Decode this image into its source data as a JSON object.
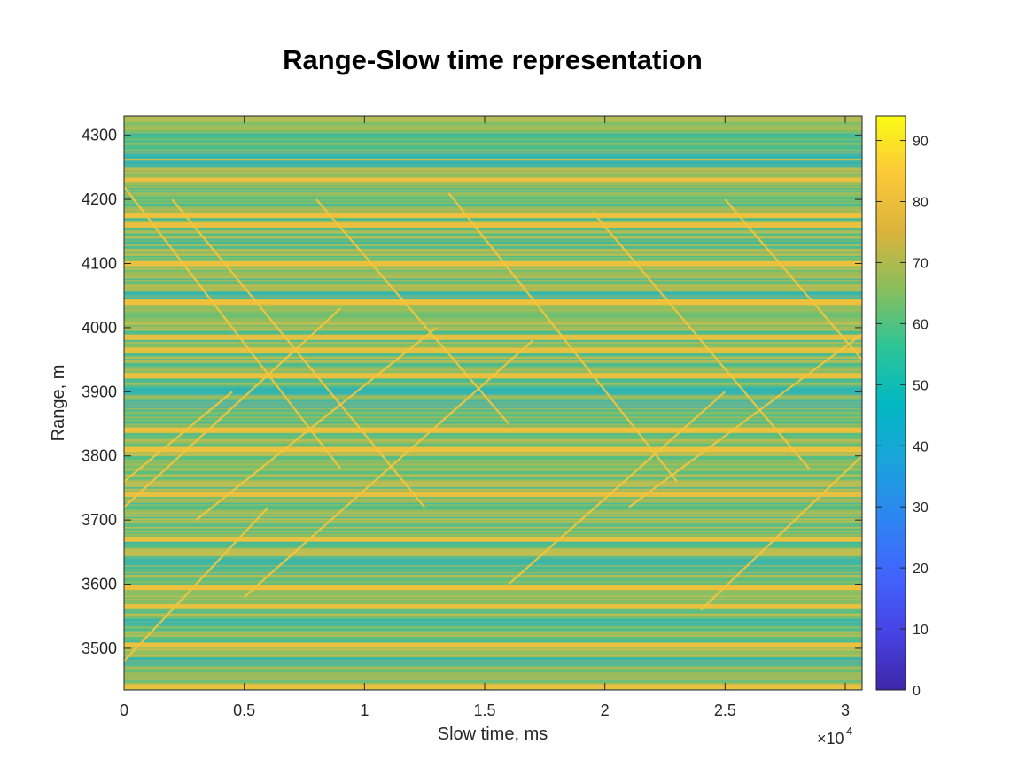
{
  "chart_data": {
    "type": "heatmap",
    "title": "Range-Slow time representation",
    "xlabel": "Slow time, ms",
    "ylabel": "Range, m",
    "xlim": [
      0,
      30700
    ],
    "ylim": [
      3435,
      4330
    ],
    "x_ticks": [
      0,
      5000,
      10000,
      15000,
      20000,
      25000,
      30000
    ],
    "x_tick_labels": [
      "0",
      "0.5",
      "1",
      "1.5",
      "2",
      "2.5",
      "3"
    ],
    "x_multiplier": {
      "base": "×10",
      "exponent": "4"
    },
    "y_ticks": [
      3500,
      3600,
      3700,
      3800,
      3900,
      4000,
      4100,
      4200,
      4300
    ],
    "y_tick_labels": [
      "3500",
      "3600",
      "3700",
      "3800",
      "3900",
      "4000",
      "4100",
      "4200",
      "4300"
    ],
    "colorbar": {
      "colormap": "parula",
      "clim": [
        0,
        94
      ],
      "ticks": [
        0,
        10,
        20,
        30,
        40,
        50,
        60,
        70,
        80,
        90
      ],
      "tick_labels": [
        "0",
        "10",
        "20",
        "30",
        "40",
        "50",
        "60",
        "70",
        "80",
        "90"
      ]
    },
    "bright_range_bands_m": [
      3440,
      3505,
      3565,
      3595,
      3670,
      3740,
      3810,
      3840,
      3925,
      3965,
      3985,
      4040,
      4100,
      4160,
      4175,
      4230
    ],
    "dim_range_bands_m": [
      3480,
      3540,
      3635,
      3880,
      3900,
      4050,
      4255,
      4270
    ],
    "diagonal_tracks": [
      {
        "x_start": 0,
        "y_start": 4220,
        "x_end": 9000,
        "y_end": 3780
      },
      {
        "x_start": 2000,
        "y_start": 4200,
        "x_end": 12500,
        "y_end": 3720
      },
      {
        "x_start": 8000,
        "y_start": 4200,
        "x_end": 16000,
        "y_end": 3850
      },
      {
        "x_start": 13500,
        "y_start": 4210,
        "x_end": 23000,
        "y_end": 3760
      },
      {
        "x_start": 19500,
        "y_start": 4180,
        "x_end": 28500,
        "y_end": 3780
      },
      {
        "x_start": 25000,
        "y_start": 4200,
        "x_end": 30700,
        "y_end": 3950
      },
      {
        "x_start": 0,
        "y_start": 3720,
        "x_end": 9000,
        "y_end": 4030
      },
      {
        "x_start": 3000,
        "y_start": 3700,
        "x_end": 13000,
        "y_end": 4000
      },
      {
        "x_start": 5000,
        "y_start": 3580,
        "x_end": 17000,
        "y_end": 3980
      },
      {
        "x_start": 0,
        "y_start": 3480,
        "x_end": 6000,
        "y_end": 3720
      },
      {
        "x_start": 16000,
        "y_start": 3600,
        "x_end": 25000,
        "y_end": 3900
      },
      {
        "x_start": 21000,
        "y_start": 3720,
        "x_end": 30700,
        "y_end": 3990
      },
      {
        "x_start": 0,
        "y_start": 3760,
        "x_end": 4500,
        "y_end": 3900
      },
      {
        "x_start": 24000,
        "y_start": 3560,
        "x_end": 30700,
        "y_end": 3800
      }
    ],
    "grid": false
  }
}
